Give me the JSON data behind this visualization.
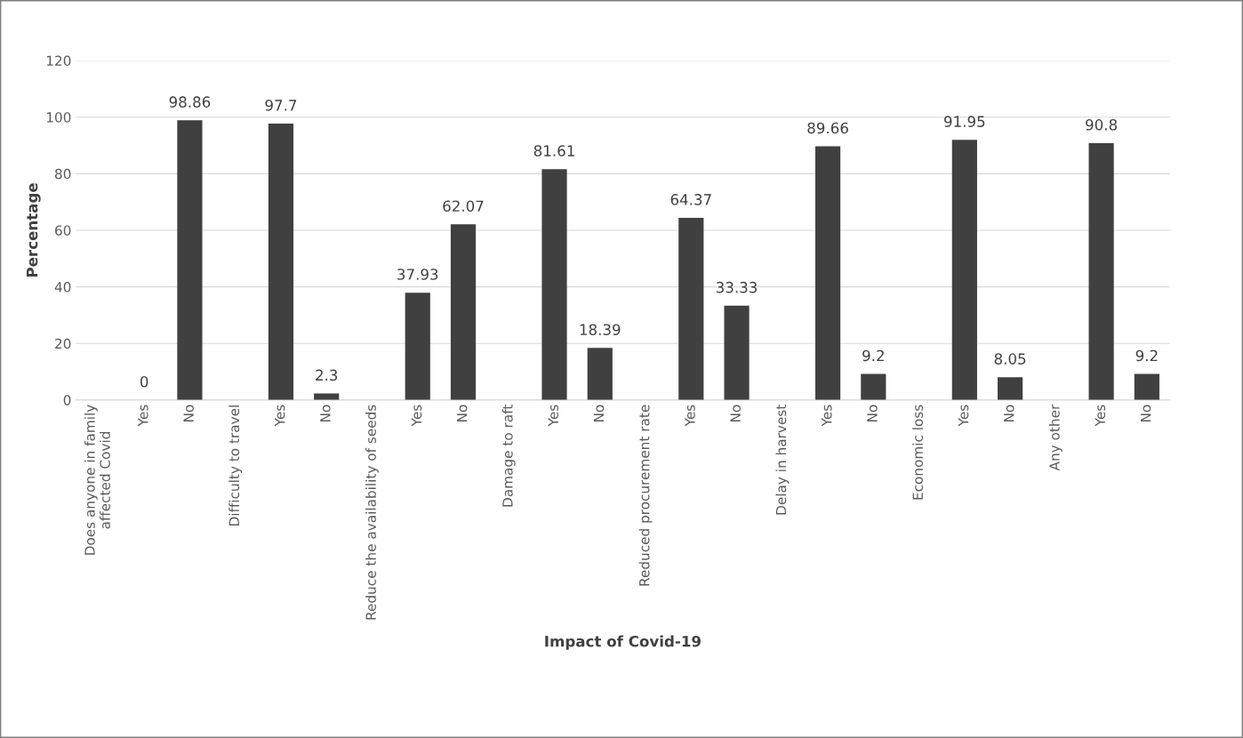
{
  "chart_data": {
    "type": "bar",
    "xlabel": "Impact of Covid-19",
    "ylabel": "Percentage",
    "categories": [
      "Does anyone in family\naffected Covid",
      "Yes",
      "No",
      "Difficulty to travel",
      "Yes",
      "No",
      "Reduce the availability of seeds",
      "Yes",
      "No",
      "Damage to raft",
      "Yes",
      "No",
      "Reduced procurement rate",
      "Yes",
      "No",
      "Delay in harvest",
      "Yes",
      "No",
      "Economic loss",
      "Yes",
      "No",
      "Any other",
      "Yes",
      "No"
    ],
    "values": [
      null,
      0,
      98.86,
      null,
      97.7,
      2.3,
      null,
      37.93,
      62.07,
      null,
      81.61,
      18.39,
      null,
      64.37,
      33.33,
      null,
      89.66,
      9.2,
      null,
      91.95,
      8.05,
      null,
      90.8,
      9.2
    ],
    "color": "#404040",
    "ylim": [
      0,
      120
    ],
    "yticks": [
      0,
      20,
      40,
      60,
      80,
      100,
      120
    ],
    "grid": "y",
    "data_labels": true,
    "legend": false
  }
}
